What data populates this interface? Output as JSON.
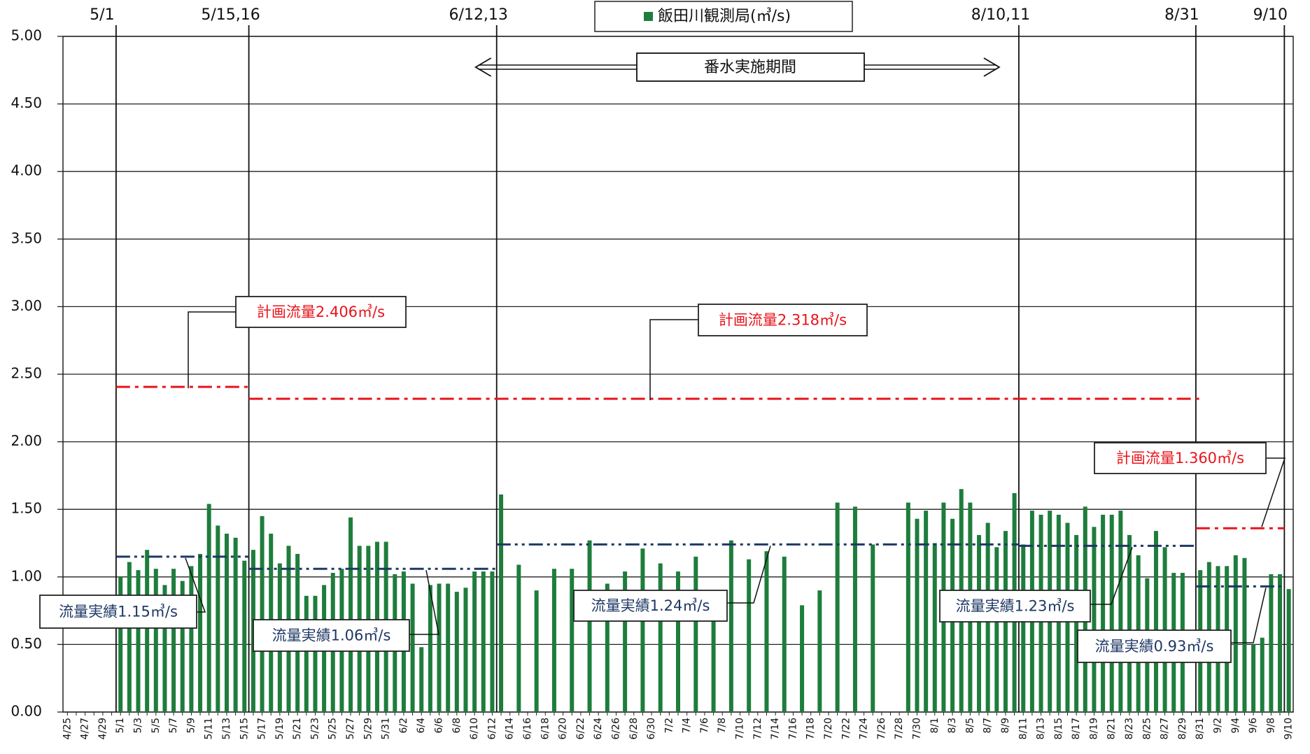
{
  "chart_data": {
    "type": "bar",
    "categories": [
      "4/25",
      null,
      "4/27",
      null,
      "4/29",
      null,
      "5/1",
      null,
      "5/3",
      null,
      "5/5",
      null,
      "5/7",
      null,
      "5/9",
      null,
      "5/11",
      null,
      "5/13",
      null,
      "5/15",
      null,
      "5/17",
      null,
      "5/19",
      null,
      "5/21",
      null,
      "5/23",
      null,
      "5/25",
      null,
      "5/27",
      null,
      "5/29",
      null,
      "5/31",
      null,
      "6/2",
      null,
      "6/4",
      null,
      "6/6",
      null,
      "6/8",
      null,
      "6/10",
      null,
      "6/12",
      null,
      "6/14",
      null,
      "6/16",
      null,
      "6/18",
      null,
      "6/20",
      null,
      "6/22",
      null,
      "6/24",
      null,
      "6/26",
      null,
      "6/28",
      null,
      "6/30",
      null,
      "7/2",
      null,
      "7/4",
      null,
      "7/6",
      null,
      "7/8",
      null,
      "7/10",
      null,
      "7/12",
      null,
      "7/14",
      null,
      "7/16",
      null,
      "7/18",
      null,
      "7/20",
      null,
      "7/22",
      null,
      "7/24",
      null,
      "7/26",
      null,
      "7/28",
      null,
      "7/30",
      null,
      "8/1",
      null,
      "8/3",
      null,
      "8/5",
      null,
      "8/7",
      null,
      "8/9",
      null,
      "8/11",
      null,
      "8/13",
      null,
      "8/15",
      null,
      "8/17",
      null,
      "8/19",
      null,
      "8/21",
      null,
      "8/23",
      null,
      "8/25",
      null,
      "8/27",
      null,
      "8/29",
      null,
      "8/31",
      null,
      "9/2",
      null,
      "9/4",
      null,
      "9/6",
      null,
      "9/8",
      null,
      "9/10"
    ],
    "series": [
      {
        "name": "飯田川観測局(㎥/s)",
        "color": "#1e7d3c",
        "values": [
          null,
          null,
          null,
          null,
          null,
          null,
          1.0,
          1.11,
          1.05,
          1.2,
          1.06,
          0.94,
          1.06,
          0.97,
          1.08,
          1.17,
          1.54,
          1.38,
          1.32,
          1.29,
          1.12,
          1.2,
          1.45,
          1.32,
          1.1,
          1.23,
          1.17,
          0.86,
          0.86,
          0.94,
          1.03,
          1.06,
          1.44,
          1.23,
          1.23,
          1.26,
          1.26,
          1.02,
          1.04,
          0.95,
          0.48,
          0.94,
          0.95,
          0.95,
          0.89,
          0.92,
          1.04,
          1.04,
          1.04,
          1.61,
          null,
          1.09,
          null,
          0.9,
          null,
          1.06,
          null,
          1.06,
          null,
          1.27,
          null,
          0.95,
          null,
          1.04,
          null,
          1.21,
          null,
          1.1,
          null,
          1.04,
          null,
          1.15,
          null,
          0.7,
          null,
          1.27,
          null,
          1.13,
          null,
          1.19,
          null,
          1.15,
          null,
          0.79,
          null,
          0.9,
          null,
          1.55,
          null,
          1.52,
          null,
          1.24,
          null,
          null,
          null,
          1.55,
          1.43,
          1.49,
          1.25,
          1.55,
          1.43,
          1.65,
          1.55,
          1.31,
          1.4,
          1.22,
          1.34,
          1.62,
          1.24,
          1.49,
          1.46,
          1.49,
          1.46,
          1.4,
          1.31,
          1.52,
          1.37,
          1.46,
          1.46,
          1.49,
          1.31,
          1.16,
          0.99,
          1.34,
          1.22,
          1.03,
          1.03,
          null,
          1.05,
          1.11,
          1.08,
          1.08,
          1.16,
          1.14,
          0.5,
          0.55,
          1.02,
          1.02,
          0.91
        ]
      }
    ],
    "ylim": [
      0,
      5
    ],
    "yticks": [
      {
        "value": 0,
        "label": "0.00"
      },
      {
        "value": 0.5,
        "label": "0.50"
      },
      {
        "value": 1,
        "label": "1.00"
      },
      {
        "value": 1.5,
        "label": "1.50"
      },
      {
        "value": 2,
        "label": "2.00"
      },
      {
        "value": 2.5,
        "label": "2.50"
      },
      {
        "value": 3,
        "label": "3.00"
      },
      {
        "value": 3.5,
        "label": "3.50"
      },
      {
        "value": 4,
        "label": "4.00"
      },
      {
        "value": 4.5,
        "label": "4.50"
      },
      {
        "value": 5,
        "label": "5.00"
      }
    ],
    "grid": true,
    "legend": "top",
    "markers": [
      "5/1",
      "5/15,16",
      "6/12,13",
      "8/10,11",
      "8/31",
      "9/10"
    ],
    "period": {
      "label": "番水実施期間",
      "from": "6/12,13",
      "to": "8/10,11"
    },
    "ref_lines": [
      {
        "label": "計画流量2.406㎥/s",
        "value": 2.406,
        "from": "5/1",
        "to": "5/15,16",
        "color": "#e8141c",
        "style": "dashdot"
      },
      {
        "label": "計画流量2.318㎥/s",
        "value": 2.318,
        "from": "5/15,16",
        "to": "8/31",
        "color": "#e8141c",
        "style": "dashdot"
      },
      {
        "label": "計画流量1.360㎥/s",
        "value": 1.36,
        "from": "8/31",
        "to": "9/10",
        "color": "#e8141c",
        "style": "dashdot"
      },
      {
        "label": "流量実績1.15㎥/s",
        "value": 1.15,
        "from": "5/1",
        "to": "5/15,16",
        "color": "#1f3864",
        "style": "dashdotdot"
      },
      {
        "label": "流量実績1.06㎥/s",
        "value": 1.06,
        "from": "5/15,16",
        "to": "6/12,13",
        "color": "#1f3864",
        "style": "dashdotdot"
      },
      {
        "label": "流量実績1.24㎥/s",
        "value": 1.24,
        "from": "6/12,13",
        "to": "8/10,11",
        "color": "#1f3864",
        "style": "dashdotdot"
      },
      {
        "label": "流量実績1.23㎥/s",
        "value": 1.23,
        "from": "8/10,11",
        "to": "8/31",
        "color": "#1f3864",
        "style": "dashdotdot"
      },
      {
        "label": "流量実績0.93㎥/s",
        "value": 0.93,
        "from": "8/31",
        "to": "9/10",
        "color": "#1f3864",
        "style": "dashdotdot"
      }
    ]
  }
}
